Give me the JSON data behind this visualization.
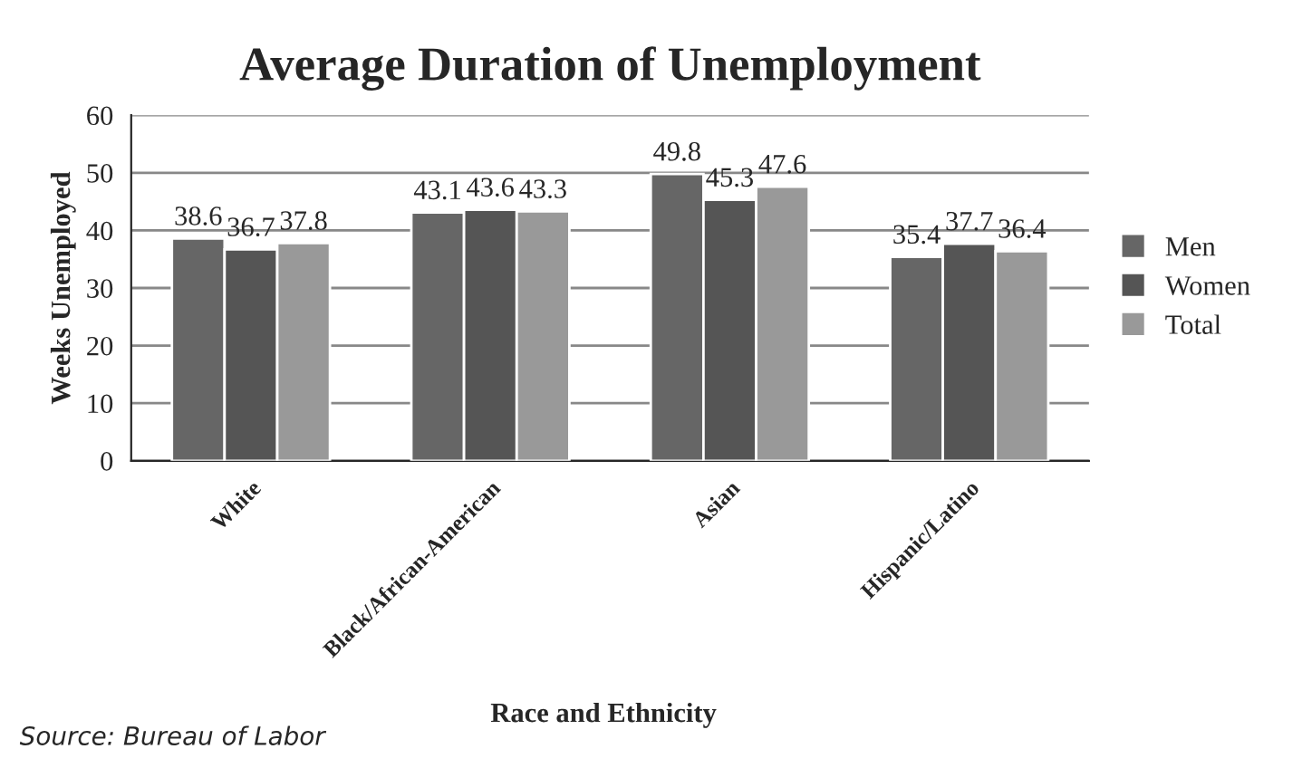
{
  "chart_data": {
    "type": "bar",
    "title": "Average Duration of Unemployment",
    "xlabel": "Race and Ethnicity",
    "ylabel": "Weeks Unemployed",
    "categories": [
      "White",
      "Black/African-American",
      "Asian",
      "Hispanic/Latino"
    ],
    "series": [
      {
        "name": "Men",
        "color": "#666666",
        "values": [
          38.6,
          43.1,
          49.8,
          35.4
        ]
      },
      {
        "name": "Women",
        "color": "#555555",
        "values": [
          36.7,
          43.6,
          45.3,
          37.7
        ]
      },
      {
        "name": "Total",
        "color": "#999999",
        "values": [
          37.8,
          43.3,
          47.6,
          36.4
        ]
      }
    ],
    "ylim": [
      0,
      60
    ],
    "yticks": [
      0,
      10,
      20,
      30,
      40,
      50,
      60
    ],
    "grid": "y",
    "legend": "right",
    "data_labels": true,
    "annotations": [
      "Source: Bureau of Labor"
    ]
  }
}
